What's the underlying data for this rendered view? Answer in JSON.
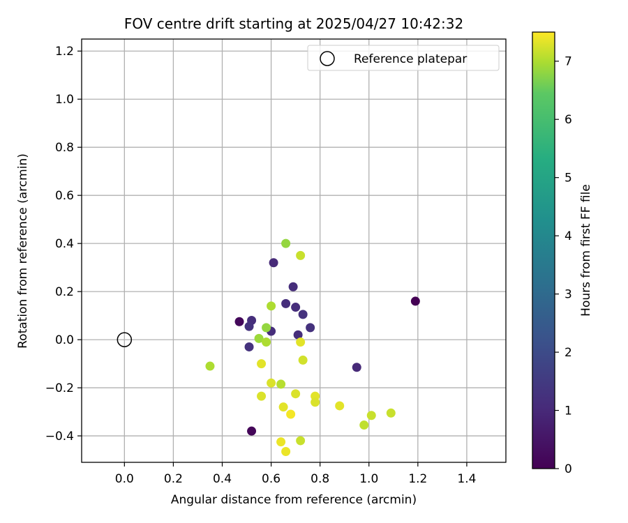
{
  "chart_data": {
    "type": "scatter",
    "title": "FOV centre drift starting at 2025/04/27 10:42:32",
    "xlabel": "Angular distance from reference (arcmin)",
    "ylabel": "Rotation from reference (arcmin)",
    "xlim": [
      -0.175,
      1.56
    ],
    "ylim": [
      -0.51,
      1.25
    ],
    "xticks": [
      0.0,
      0.2,
      0.4,
      0.6,
      0.8,
      1.0,
      1.2,
      1.4
    ],
    "yticks": [
      -0.4,
      -0.2,
      0.0,
      0.2,
      0.4,
      0.6,
      0.8,
      1.0,
      1.2
    ],
    "xtick_labels": [
      "0.0",
      "0.2",
      "0.4",
      "0.6",
      "0.8",
      "1.0",
      "1.2",
      "1.4"
    ],
    "ytick_labels": [
      "−0.4",
      "−0.2",
      "0.0",
      "0.2",
      "0.4",
      "0.6",
      "0.8",
      "1.0",
      "1.2"
    ],
    "grid": true,
    "legend": {
      "position": "upper-right",
      "entries": [
        "Reference platepar"
      ]
    },
    "reference_point": {
      "x": 0.0,
      "y": 0.0
    },
    "colorbar": {
      "label": "Hours from first FF file",
      "range": [
        0,
        7.5
      ],
      "ticks": [
        0,
        1,
        2,
        3,
        4,
        5,
        6,
        7
      ],
      "tick_labels": [
        "0",
        "1",
        "2",
        "3",
        "4",
        "5",
        "6",
        "7"
      ],
      "colormap": "viridis"
    },
    "points": [
      {
        "x": 1.19,
        "y": 0.16,
        "hours": 0.0
      },
      {
        "x": 0.47,
        "y": 0.075,
        "hours": 0.15
      },
      {
        "x": 0.52,
        "y": -0.38,
        "hours": 0.1
      },
      {
        "x": 0.95,
        "y": -0.115,
        "hours": 0.9
      },
      {
        "x": 0.61,
        "y": 0.32,
        "hours": 0.9
      },
      {
        "x": 0.69,
        "y": 0.22,
        "hours": 1.0
      },
      {
        "x": 0.66,
        "y": 0.15,
        "hours": 1.0
      },
      {
        "x": 0.7,
        "y": 0.135,
        "hours": 1.0
      },
      {
        "x": 0.73,
        "y": 0.105,
        "hours": 1.1
      },
      {
        "x": 0.76,
        "y": 0.05,
        "hours": 1.1
      },
      {
        "x": 0.71,
        "y": 0.02,
        "hours": 1.0
      },
      {
        "x": 0.52,
        "y": 0.08,
        "hours": 1.0
      },
      {
        "x": 0.51,
        "y": 0.055,
        "hours": 1.1
      },
      {
        "x": 0.6,
        "y": 0.035,
        "hours": 1.0
      },
      {
        "x": 0.51,
        "y": -0.03,
        "hours": 1.1
      },
      {
        "x": 0.66,
        "y": 0.4,
        "hours": 6.3
      },
      {
        "x": 0.72,
        "y": 0.35,
        "hours": 6.9
      },
      {
        "x": 0.6,
        "y": 0.14,
        "hours": 6.6
      },
      {
        "x": 0.58,
        "y": 0.05,
        "hours": 6.3
      },
      {
        "x": 0.55,
        "y": 0.005,
        "hours": 6.4
      },
      {
        "x": 0.58,
        "y": -0.01,
        "hours": 6.6
      },
      {
        "x": 0.72,
        "y": -0.01,
        "hours": 7.2
      },
      {
        "x": 0.73,
        "y": -0.085,
        "hours": 7.0
      },
      {
        "x": 0.35,
        "y": -0.11,
        "hours": 6.6
      },
      {
        "x": 0.56,
        "y": -0.1,
        "hours": 7.2
      },
      {
        "x": 0.6,
        "y": -0.18,
        "hours": 7.1
      },
      {
        "x": 0.64,
        "y": -0.185,
        "hours": 6.7
      },
      {
        "x": 0.56,
        "y": -0.235,
        "hours": 7.1
      },
      {
        "x": 0.7,
        "y": -0.225,
        "hours": 7.1
      },
      {
        "x": 0.78,
        "y": -0.235,
        "hours": 7.2
      },
      {
        "x": 0.78,
        "y": -0.26,
        "hours": 7.1
      },
      {
        "x": 0.65,
        "y": -0.28,
        "hours": 7.2
      },
      {
        "x": 0.68,
        "y": -0.31,
        "hours": 7.4
      },
      {
        "x": 0.88,
        "y": -0.275,
        "hours": 7.2
      },
      {
        "x": 1.01,
        "y": -0.315,
        "hours": 6.9
      },
      {
        "x": 1.09,
        "y": -0.305,
        "hours": 6.9
      },
      {
        "x": 0.98,
        "y": -0.355,
        "hours": 6.8
      },
      {
        "x": 0.64,
        "y": -0.425,
        "hours": 7.3
      },
      {
        "x": 0.72,
        "y": -0.42,
        "hours": 6.9
      },
      {
        "x": 0.66,
        "y": -0.465,
        "hours": 7.3
      }
    ]
  }
}
